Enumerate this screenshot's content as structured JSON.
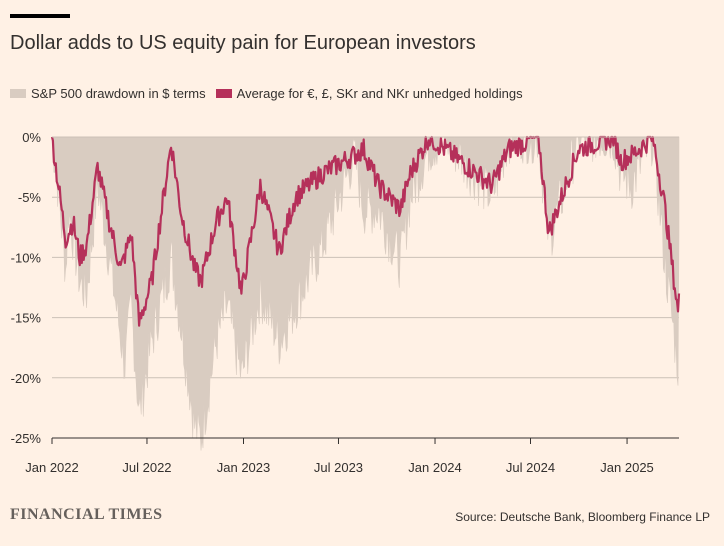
{
  "title": "Dollar adds to US equity pain for European investors",
  "source": "Source: Deutsche Bank, Bloomberg Finance LP",
  "brand": "FINANCIAL TIMES",
  "colors": {
    "background": "#FFF1E5",
    "spx_area": "#D9CCC1",
    "avg_line": "#B5305A",
    "grid": "#CCC1B7",
    "baseline": "#33302E"
  },
  "chart_data": {
    "type": "area",
    "title": "Dollar adds to US equity pain for European investors",
    "xlabel": "",
    "ylabel": "",
    "ylim": [
      -25,
      0
    ],
    "y_ticks": [
      0,
      -5,
      -10,
      -15,
      -20,
      -25
    ],
    "y_tick_labels": [
      "0%",
      "-5%",
      "-10%",
      "-15%",
      "-20%",
      "-25%"
    ],
    "x_tick_labels": [
      "Jan 2022",
      "Jul 2022",
      "Jan 2023",
      "Jul 2023",
      "Jan 2024",
      "Jul 2024",
      "Jan 2025"
    ],
    "x_tick_dates": [
      "2022-01-01",
      "2022-07-01",
      "2023-01-01",
      "2023-07-01",
      "2024-01-01",
      "2024-07-01",
      "2025-01-01"
    ],
    "xlim": [
      "2022-01-01",
      "2025-04-10"
    ],
    "grid": true,
    "legend_position": "top-left",
    "series": [
      {
        "name": "S&P 500 drawdown in $ terms",
        "kind": "area",
        "points": [
          [
            "2022-01-01",
            0
          ],
          [
            "2022-01-10",
            -3
          ],
          [
            "2022-01-27",
            -11
          ],
          [
            "2022-02-02",
            -6
          ],
          [
            "2022-02-23",
            -12
          ],
          [
            "2022-03-08",
            -13
          ],
          [
            "2022-03-29",
            -4
          ],
          [
            "2022-04-20",
            -10
          ],
          [
            "2022-05-20",
            -19
          ],
          [
            "2022-06-01",
            -14
          ],
          [
            "2022-06-16",
            -23
          ],
          [
            "2022-07-10",
            -17
          ],
          [
            "2022-08-16",
            -10
          ],
          [
            "2022-09-05",
            -16
          ],
          [
            "2022-09-30",
            -24
          ],
          [
            "2022-10-12",
            -25
          ],
          [
            "2022-11-10",
            -17
          ],
          [
            "2022-12-01",
            -14
          ],
          [
            "2022-12-28",
            -20
          ],
          [
            "2023-02-02",
            -13
          ],
          [
            "2023-03-10",
            -17
          ],
          [
            "2023-04-10",
            -14
          ],
          [
            "2023-06-01",
            -9
          ],
          [
            "2023-07-31",
            -1.5
          ],
          [
            "2023-08-18",
            -6
          ],
          [
            "2023-09-15",
            -6
          ],
          [
            "2023-10-27",
            -10.5
          ],
          [
            "2023-11-15",
            -5
          ],
          [
            "2023-12-20",
            -1
          ],
          [
            "2024-01-20",
            0
          ],
          [
            "2024-04-19",
            -5
          ],
          [
            "2024-05-20",
            0
          ],
          [
            "2024-07-16",
            0
          ],
          [
            "2024-08-05",
            -8.5
          ],
          [
            "2024-09-06",
            -4
          ],
          [
            "2024-09-30",
            0
          ],
          [
            "2024-12-06",
            0
          ],
          [
            "2024-12-20",
            -3
          ],
          [
            "2025-01-10",
            -4
          ],
          [
            "2025-02-19",
            0
          ],
          [
            "2025-03-13",
            -10
          ],
          [
            "2025-04-08",
            -19
          ],
          [
            "2025-04-10",
            -8
          ]
        ]
      },
      {
        "name": "Average for €, £, SKr and NKr unhedged holdings",
        "kind": "line",
        "points": [
          [
            "2022-01-01",
            0
          ],
          [
            "2022-01-10",
            -3
          ],
          [
            "2022-01-27",
            -8.5
          ],
          [
            "2022-02-10",
            -7
          ],
          [
            "2022-02-23",
            -10
          ],
          [
            "2022-03-08",
            -9
          ],
          [
            "2022-03-29",
            -2.5
          ],
          [
            "2022-04-20",
            -7
          ],
          [
            "2022-05-12",
            -11
          ],
          [
            "2022-06-01",
            -8
          ],
          [
            "2022-06-16",
            -15.5
          ],
          [
            "2022-07-10",
            -12
          ],
          [
            "2022-08-16",
            -0.5
          ],
          [
            "2022-09-05",
            -6.5
          ],
          [
            "2022-09-30",
            -11
          ],
          [
            "2022-10-12",
            -12
          ],
          [
            "2022-11-10",
            -7
          ],
          [
            "2022-12-01",
            -5
          ],
          [
            "2022-12-28",
            -13
          ],
          [
            "2023-02-02",
            -4
          ],
          [
            "2023-03-10",
            -9.5
          ],
          [
            "2023-04-10",
            -5
          ],
          [
            "2023-06-01",
            -3
          ],
          [
            "2023-07-31",
            -1.5
          ],
          [
            "2023-08-18",
            -1
          ],
          [
            "2023-09-15",
            -4
          ],
          [
            "2023-10-27",
            -6
          ],
          [
            "2023-11-15",
            -3
          ],
          [
            "2023-12-20",
            0
          ],
          [
            "2024-01-20",
            -1
          ],
          [
            "2024-04-19",
            -4
          ],
          [
            "2024-05-20",
            -1
          ],
          [
            "2024-07-16",
            0
          ],
          [
            "2024-08-05",
            -8
          ],
          [
            "2024-09-06",
            -4
          ],
          [
            "2024-09-30",
            -1
          ],
          [
            "2024-12-06",
            0
          ],
          [
            "2024-12-20",
            -2
          ],
          [
            "2025-01-10",
            -1.5
          ],
          [
            "2025-02-19",
            0
          ],
          [
            "2025-03-13",
            -5.5
          ],
          [
            "2025-04-08",
            -14.5
          ],
          [
            "2025-04-10",
            -13
          ]
        ]
      }
    ]
  }
}
